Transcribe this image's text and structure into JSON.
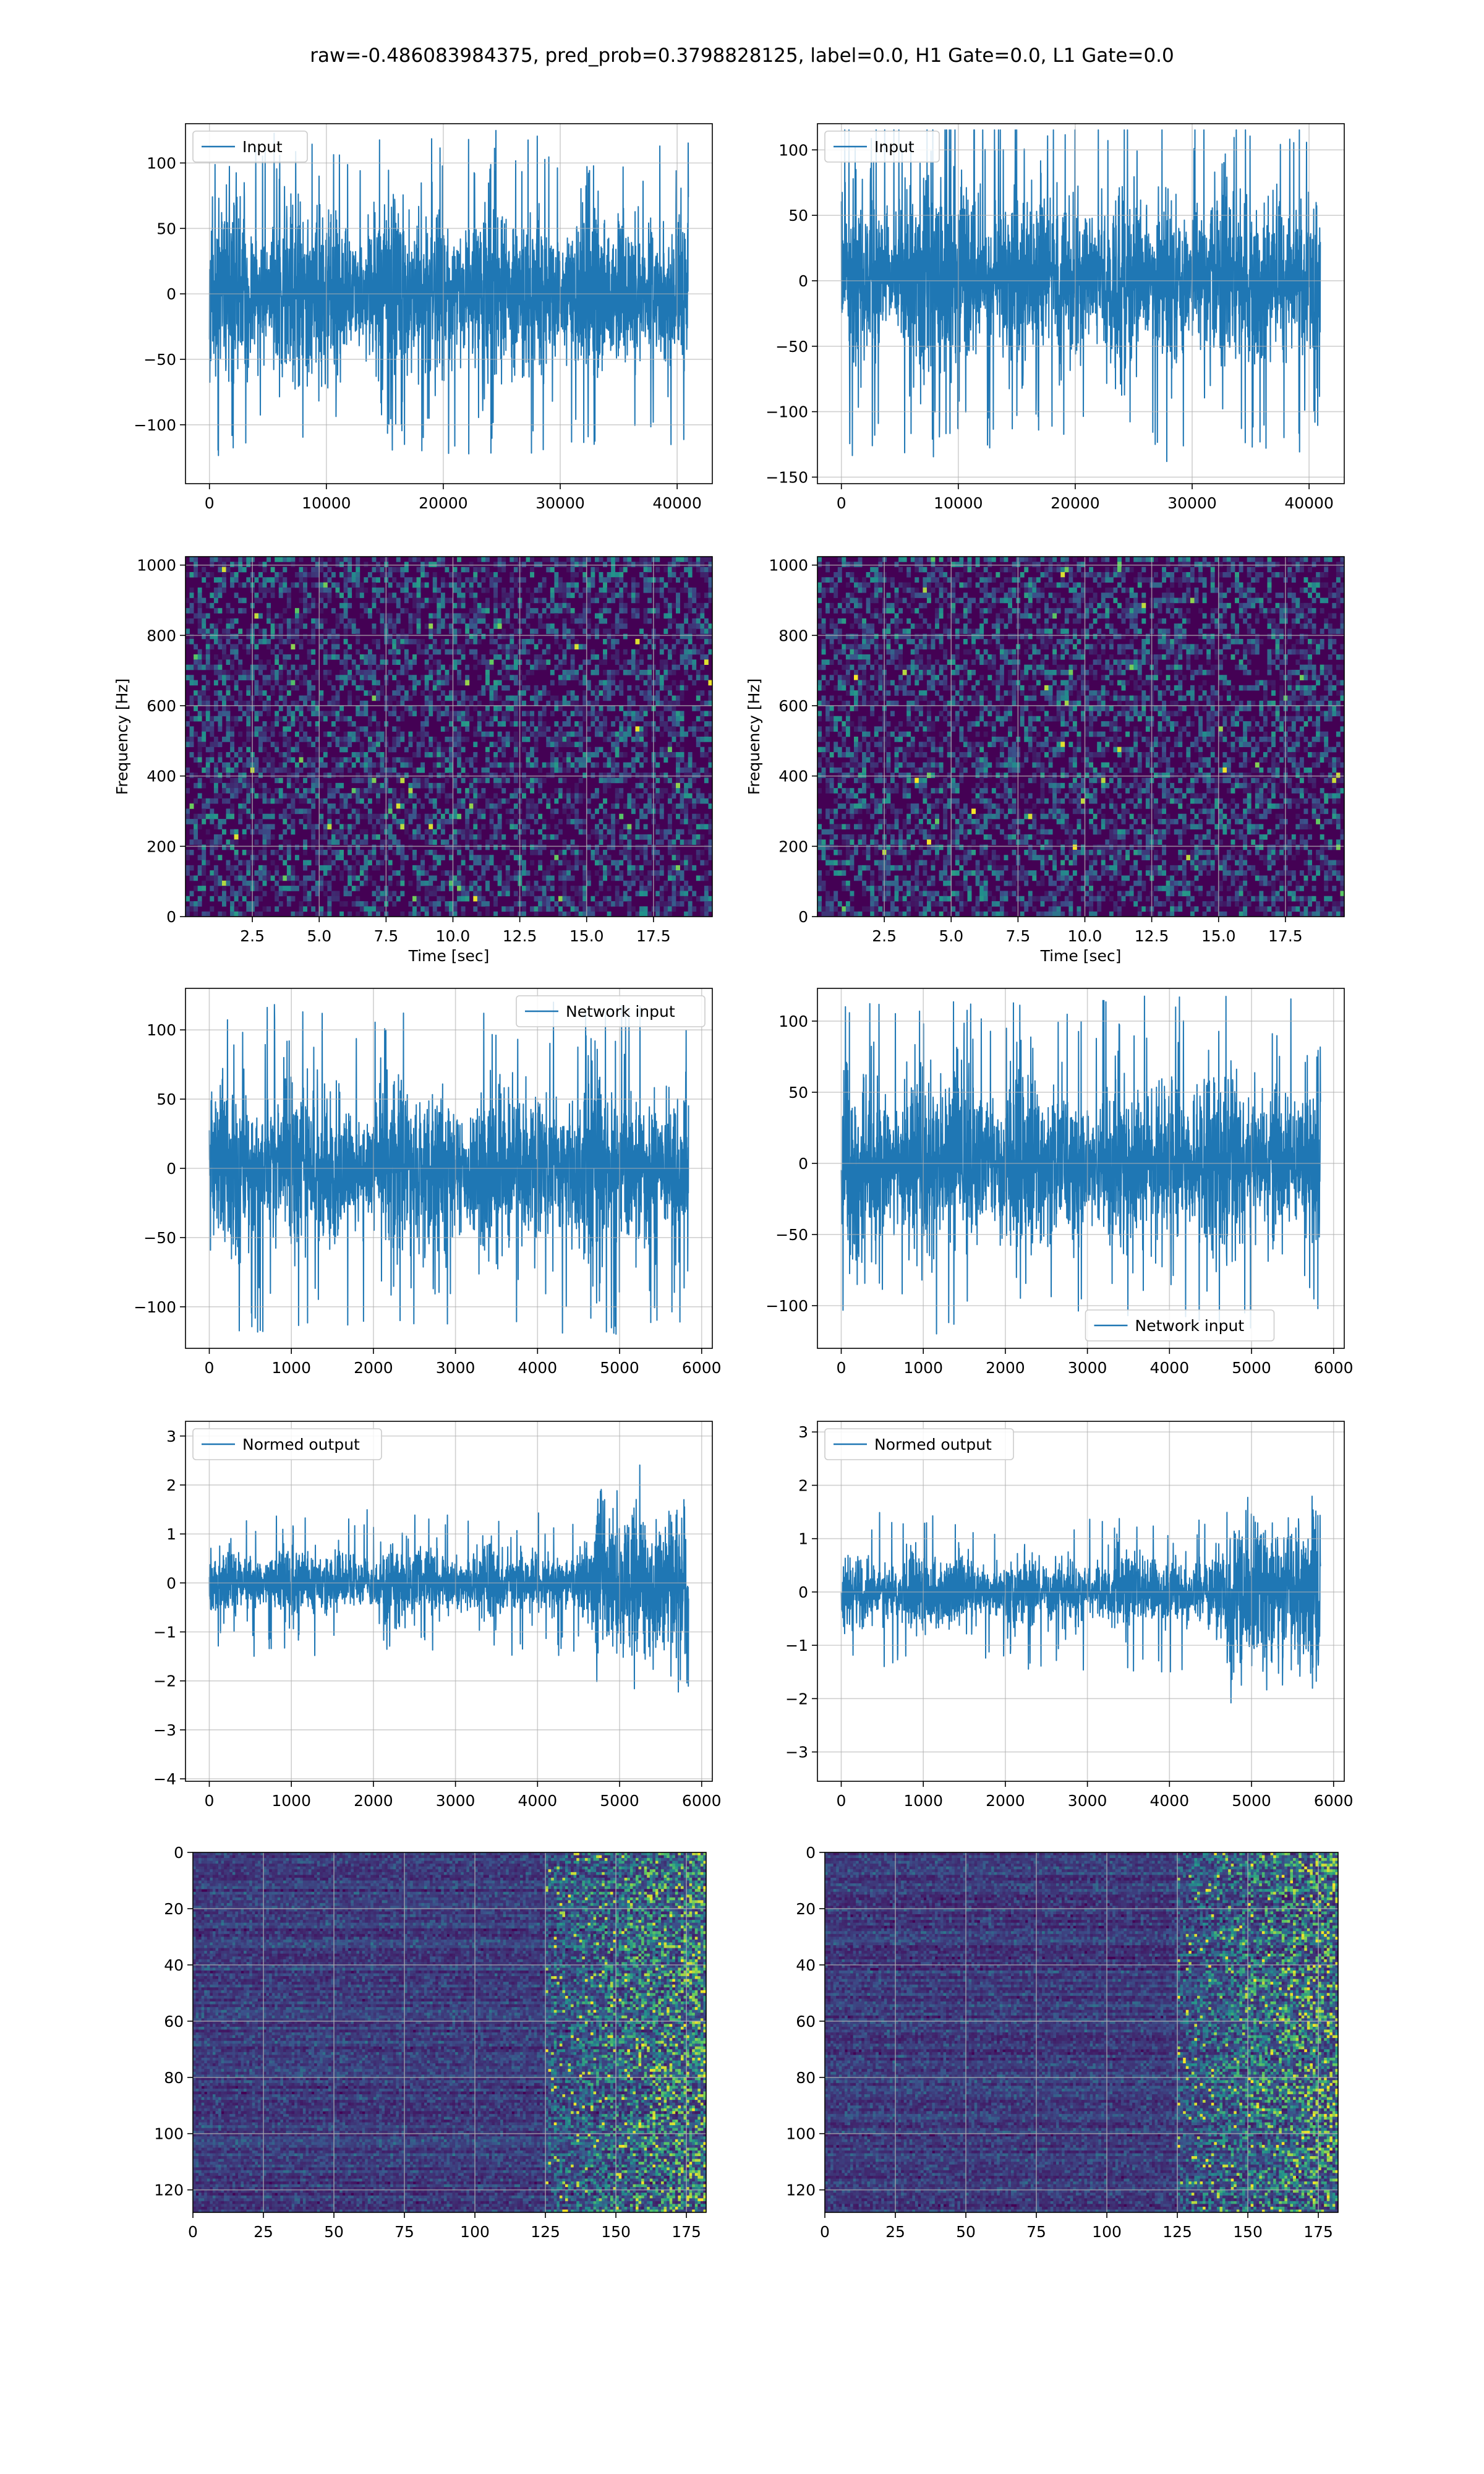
{
  "figure": {
    "suptitle": "raw=-0.486083984375, pred_prob=0.3798828125, label=0.0, H1 Gate=0.0, L1 Gate=0.0"
  },
  "colors": {
    "line": "#1f77b4",
    "grid": "#b0b0b0",
    "viridis_low": "#440154",
    "viridis_mid": "#21918c",
    "viridis_high": "#fde725"
  },
  "chart_data": [
    {
      "id": "h1-input",
      "type": "line",
      "title": "",
      "xlabel": "",
      "ylabel": "",
      "legend": {
        "label": "Input",
        "placement": "upper-left"
      },
      "xlim": [
        -2048,
        43008
      ],
      "ylim": [
        -145,
        130
      ],
      "xticks": [
        0,
        10000,
        20000,
        30000,
        40000
      ],
      "xtick_labels": [
        "0",
        "10000",
        "20000",
        "30000",
        "40000"
      ],
      "yticks": [
        -100,
        -50,
        0,
        50,
        100
      ],
      "ytick_labels": [
        "−100",
        "−50",
        "0",
        "50",
        "100"
      ],
      "x_range": [
        0,
        40960
      ],
      "envelope": 45,
      "peak": 125,
      "spikes": 80,
      "seed": 11,
      "burst_from": null,
      "burst_scale": 1
    },
    {
      "id": "l1-input",
      "type": "line",
      "title": "",
      "xlabel": "",
      "ylabel": "",
      "legend": {
        "label": "Input",
        "placement": "upper-left"
      },
      "xlim": [
        -2048,
        43008
      ],
      "ylim": [
        -155,
        120
      ],
      "xticks": [
        0,
        10000,
        20000,
        30000,
        40000
      ],
      "xtick_labels": [
        "0",
        "10000",
        "20000",
        "30000",
        "40000"
      ],
      "yticks": [
        -150,
        -100,
        -50,
        0,
        50,
        100
      ],
      "ytick_labels": [
        "−150",
        "−100",
        "−50",
        "0",
        "50",
        "100"
      ],
      "x_range": [
        0,
        40960
      ],
      "envelope": 45,
      "peak": 140,
      "spikes": 80,
      "seed": 23,
      "burst_from": null,
      "burst_scale": 1
    },
    {
      "id": "h1-spectrogram",
      "type": "heatmap",
      "title": "",
      "xlabel": "Time [sec]",
      "ylabel": "Frequency [Hz]",
      "xlim": [
        0,
        19.7
      ],
      "ylim": [
        0,
        1024
      ],
      "xticks": [
        2.5,
        5,
        7.5,
        10,
        12.5,
        15,
        17.5
      ],
      "xtick_labels": [
        "2.5",
        "5.0",
        "7.5",
        "10.0",
        "12.5",
        "15.0",
        "17.5"
      ],
      "yticks": [
        0,
        200,
        400,
        600,
        800,
        1000
      ],
      "ytick_labels": [
        "0",
        "200",
        "400",
        "600",
        "800",
        "1000"
      ],
      "y_inverted": false,
      "colormap": "viridis",
      "cols": 130,
      "rows": 70,
      "seed": 31,
      "burst_col": null
    },
    {
      "id": "l1-spectrogram",
      "type": "heatmap",
      "title": "",
      "xlabel": "Time [sec]",
      "ylabel": "Frequency [Hz]",
      "xlim": [
        0,
        19.7
      ],
      "ylim": [
        0,
        1024
      ],
      "xticks": [
        2.5,
        5,
        7.5,
        10,
        12.5,
        15,
        17.5
      ],
      "xtick_labels": [
        "2.5",
        "5.0",
        "7.5",
        "10.0",
        "12.5",
        "15.0",
        "17.5"
      ],
      "yticks": [
        0,
        200,
        400,
        600,
        800,
        1000
      ],
      "ytick_labels": [
        "0",
        "200",
        "400",
        "600",
        "800",
        "1000"
      ],
      "y_inverted": false,
      "colormap": "viridis",
      "cols": 130,
      "rows": 70,
      "seed": 47,
      "burst_col": null
    },
    {
      "id": "h1-network-input",
      "type": "line",
      "title": "",
      "xlabel": "",
      "ylabel": "",
      "legend": {
        "label": "Network input",
        "placement": "upper-right"
      },
      "xlim": [
        -290,
        6130
      ],
      "ylim": [
        -130,
        130
      ],
      "xticks": [
        0,
        1000,
        2000,
        3000,
        4000,
        5000,
        6000
      ],
      "xtick_labels": [
        "0",
        "1000",
        "2000",
        "3000",
        "4000",
        "5000",
        "6000"
      ],
      "yticks": [
        -100,
        -50,
        0,
        50,
        100
      ],
      "ytick_labels": [
        "−100",
        "−50",
        "0",
        "50",
        "100"
      ],
      "x_range": [
        0,
        5840
      ],
      "envelope": 40,
      "peak": 120,
      "spikes": 60,
      "seed": 53,
      "burst_from": null,
      "burst_scale": 1
    },
    {
      "id": "l1-network-input",
      "type": "line",
      "title": "",
      "xlabel": "",
      "ylabel": "",
      "legend": {
        "label": "Network input",
        "placement": "lower-center"
      },
      "xlim": [
        -290,
        6130
      ],
      "ylim": [
        -130,
        123
      ],
      "xticks": [
        0,
        1000,
        2000,
        3000,
        4000,
        5000,
        6000
      ],
      "xtick_labels": [
        "0",
        "1000",
        "2000",
        "3000",
        "4000",
        "5000",
        "6000"
      ],
      "yticks": [
        -100,
        -50,
        0,
        50,
        100
      ],
      "ytick_labels": [
        "−100",
        "−50",
        "0",
        "50",
        "100"
      ],
      "x_range": [
        0,
        5840
      ],
      "envelope": 40,
      "peak": 120,
      "spikes": 60,
      "seed": 67,
      "burst_from": null,
      "burst_scale": 1
    },
    {
      "id": "h1-normed-output",
      "type": "line",
      "title": "",
      "xlabel": "",
      "ylabel": "",
      "legend": {
        "label": "Normed output",
        "placement": "upper-left"
      },
      "xlim": [
        -290,
        6130
      ],
      "ylim": [
        -4.05,
        3.3
      ],
      "xticks": [
        0,
        1000,
        2000,
        3000,
        4000,
        5000,
        6000
      ],
      "xtick_labels": [
        "0",
        "1000",
        "2000",
        "3000",
        "4000",
        "5000",
        "6000"
      ],
      "yticks": [
        -4,
        -3,
        -2,
        -1,
        0,
        1,
        2,
        3
      ],
      "ytick_labels": [
        "−4",
        "−3",
        "−2",
        "−1",
        "0",
        "1",
        "2",
        "3"
      ],
      "x_range": [
        0,
        5840
      ],
      "envelope": 0.45,
      "peak": 1.5,
      "spikes": 50,
      "seed": 71,
      "burst_from": 4700,
      "burst_scale": 2.5
    },
    {
      "id": "l1-normed-output",
      "type": "line",
      "title": "",
      "xlabel": "",
      "ylabel": "",
      "legend": {
        "label": "Normed output",
        "placement": "upper-left"
      },
      "xlim": [
        -290,
        6130
      ],
      "ylim": [
        -3.55,
        3.2
      ],
      "xticks": [
        0,
        1000,
        2000,
        3000,
        4000,
        5000,
        6000
      ],
      "xtick_labels": [
        "0",
        "1000",
        "2000",
        "3000",
        "4000",
        "5000",
        "6000"
      ],
      "yticks": [
        -3,
        -2,
        -1,
        0,
        1,
        2,
        3
      ],
      "ytick_labels": [
        "−3",
        "−2",
        "−1",
        "0",
        "1",
        "2",
        "3"
      ],
      "x_range": [
        0,
        5840
      ],
      "envelope": 0.45,
      "peak": 1.5,
      "spikes": 50,
      "seed": 83,
      "burst_from": 4700,
      "burst_scale": 2.5
    },
    {
      "id": "h1-feature-map",
      "type": "heatmap",
      "title": "",
      "xlabel": "",
      "ylabel": "",
      "xlim": [
        0,
        182
      ],
      "ylim": [
        0,
        128
      ],
      "xticks": [
        0,
        25,
        50,
        75,
        100,
        125,
        150,
        175
      ],
      "xtick_labels": [
        "0",
        "25",
        "50",
        "75",
        "100",
        "125",
        "150",
        "175"
      ],
      "yticks": [
        0,
        20,
        40,
        60,
        80,
        100,
        120
      ],
      "ytick_labels": [
        "0",
        "20",
        "40",
        "60",
        "80",
        "100",
        "120"
      ],
      "y_inverted": true,
      "colormap": "viridis",
      "cols": 182,
      "rows": 128,
      "seed": 97,
      "burst_col": 125
    },
    {
      "id": "l1-feature-map",
      "type": "heatmap",
      "title": "",
      "xlabel": "",
      "ylabel": "",
      "xlim": [
        0,
        182
      ],
      "ylim": [
        0,
        128
      ],
      "xticks": [
        0,
        25,
        50,
        75,
        100,
        125,
        150,
        175
      ],
      "xtick_labels": [
        "0",
        "25",
        "50",
        "75",
        "100",
        "125",
        "150",
        "175"
      ],
      "yticks": [
        0,
        20,
        40,
        60,
        80,
        100,
        120
      ],
      "ytick_labels": [
        "0",
        "20",
        "40",
        "60",
        "80",
        "100",
        "120"
      ],
      "y_inverted": true,
      "colormap": "viridis",
      "cols": 182,
      "rows": 128,
      "seed": 101,
      "burst_col": 125
    }
  ]
}
